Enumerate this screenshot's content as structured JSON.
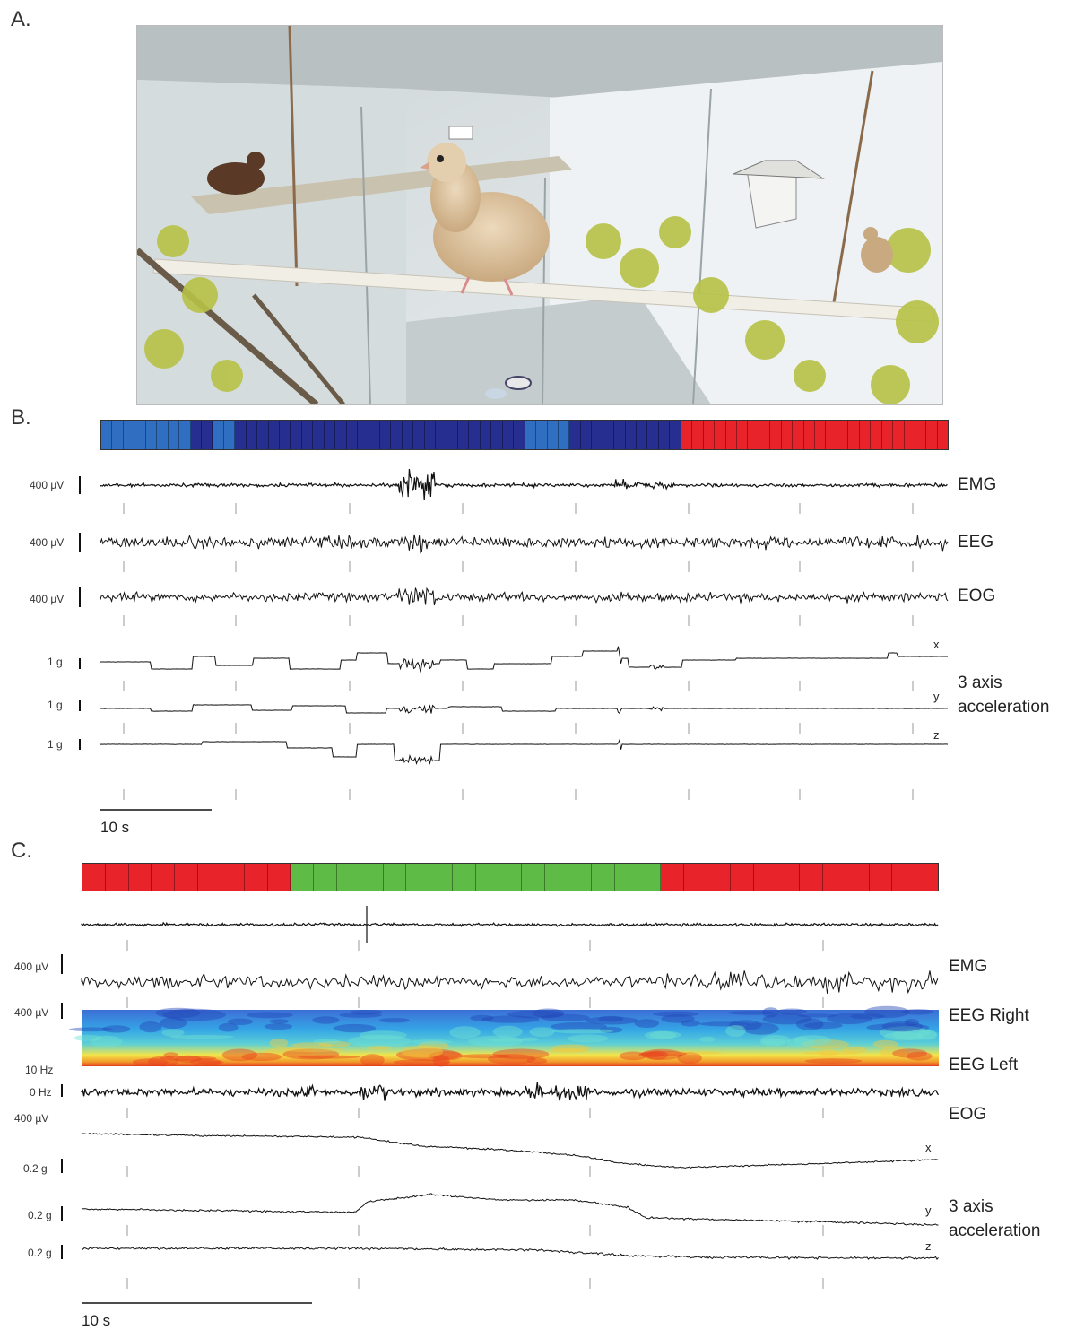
{
  "panels": {
    "A": {
      "label": "A.",
      "photo_description_icon": "pigeon-aviary-photo"
    },
    "B": {
      "label": "B.",
      "hypnogram": [
        "#2f6ec0",
        "#2f6ec0",
        "#2f6ec0",
        "#2f6ec0",
        "#2f6ec0",
        "#2f6ec0",
        "#2f6ec0",
        "#2f6ec0",
        "#262f8f",
        "#262f8f",
        "#2f6ec0",
        "#2f6ec0",
        "#262f8f",
        "#262f8f",
        "#262f8f",
        "#262f8f",
        "#262f8f",
        "#262f8f",
        "#262f8f",
        "#262f8f",
        "#262f8f",
        "#262f8f",
        "#262f8f",
        "#262f8f",
        "#262f8f",
        "#262f8f",
        "#262f8f",
        "#262f8f",
        "#262f8f",
        "#262f8f",
        "#262f8f",
        "#262f8f",
        "#262f8f",
        "#262f8f",
        "#262f8f",
        "#262f8f",
        "#262f8f",
        "#262f8f",
        "#2f6ec0",
        "#2f6ec0",
        "#2f6ec0",
        "#2f6ec0",
        "#262f8f",
        "#262f8f",
        "#262f8f",
        "#262f8f",
        "#262f8f",
        "#262f8f",
        "#262f8f",
        "#262f8f",
        "#262f8f",
        "#262f8f",
        "#e8232a",
        "#e8232a",
        "#e8232a",
        "#e8232a",
        "#e8232a",
        "#e8232a",
        "#e8232a",
        "#e8232a",
        "#e8232a",
        "#e8232a",
        "#e8232a",
        "#e8232a",
        "#e8232a",
        "#e8232a",
        "#e8232a",
        "#e8232a",
        "#e8232a",
        "#e8232a",
        "#e8232a",
        "#e8232a",
        "#e8232a",
        "#e8232a",
        "#e8232a",
        "#e8232a"
      ],
      "channels": [
        {
          "scale": "400 µV",
          "label": "EMG"
        },
        {
          "scale": "400 µV",
          "label": "EEG"
        },
        {
          "scale": "400 µV",
          "label": "EOG"
        },
        {
          "scale": "1 g",
          "label": "x"
        },
        {
          "scale": "1 g",
          "label": "y"
        },
        {
          "scale": "1 g",
          "label": "z"
        }
      ],
      "acc_label_1": "3 axis",
      "acc_label_2": "acceleration",
      "timebar": "10 s"
    },
    "C": {
      "label": "C.",
      "hypnogram": [
        "#e8232a",
        "#e8232a",
        "#e8232a",
        "#e8232a",
        "#e8232a",
        "#e8232a",
        "#e8232a",
        "#e8232a",
        "#e8232a",
        "#5dbb46",
        "#5dbb46",
        "#5dbb46",
        "#5dbb46",
        "#5dbb46",
        "#5dbb46",
        "#5dbb46",
        "#5dbb46",
        "#5dbb46",
        "#5dbb46",
        "#5dbb46",
        "#5dbb46",
        "#5dbb46",
        "#5dbb46",
        "#5dbb46",
        "#5dbb46",
        "#e8232a",
        "#e8232a",
        "#e8232a",
        "#e8232a",
        "#e8232a",
        "#e8232a",
        "#e8232a",
        "#e8232a",
        "#e8232a",
        "#e8232a",
        "#e8232a",
        "#e8232a"
      ],
      "scales": [
        "400 µV",
        "400 µV",
        "10 Hz",
        "0 Hz",
        "400 µV",
        "0.2 g",
        "0.2 g",
        "0.2 g"
      ],
      "labels": [
        "EMG",
        "EEG Right",
        "EEG Left",
        "EOG"
      ],
      "axis_letters": [
        "x",
        "y",
        "z"
      ],
      "acc_label_1": "3 axis",
      "acc_label_2": "acceleration",
      "timebar": "10 s"
    }
  },
  "colors": {
    "wake": "#2f6ec0",
    "rest": "#262f8f",
    "sws": "#e8232a",
    "rem": "#5dbb46",
    "trace": "#111111"
  },
  "chart_data": [
    {
      "type": "line",
      "panel": "B",
      "series": [
        {
          "name": "EMG"
        },
        {
          "name": "EEG"
        },
        {
          "name": "EOG"
        },
        {
          "name": "x"
        },
        {
          "name": "y"
        },
        {
          "name": "z"
        }
      ],
      "scale_bar_x": "10 s",
      "stage_sequence": [
        "wake",
        "rest",
        "wake",
        "rest",
        "wake",
        "rest",
        "sws"
      ]
    },
    {
      "type": "line",
      "panel": "C",
      "series": [
        {
          "name": "EMG"
        },
        {
          "name": "EEG Right"
        },
        {
          "name": "EEG Left"
        },
        {
          "name": "EOG"
        },
        {
          "name": "x"
        },
        {
          "name": "y"
        },
        {
          "name": "z"
        }
      ],
      "scale_bar_x": "10 s",
      "spectrogram_range": [
        "0 Hz",
        "10 Hz"
      ],
      "stage_sequence": [
        "sws",
        "rem",
        "sws"
      ]
    }
  ]
}
